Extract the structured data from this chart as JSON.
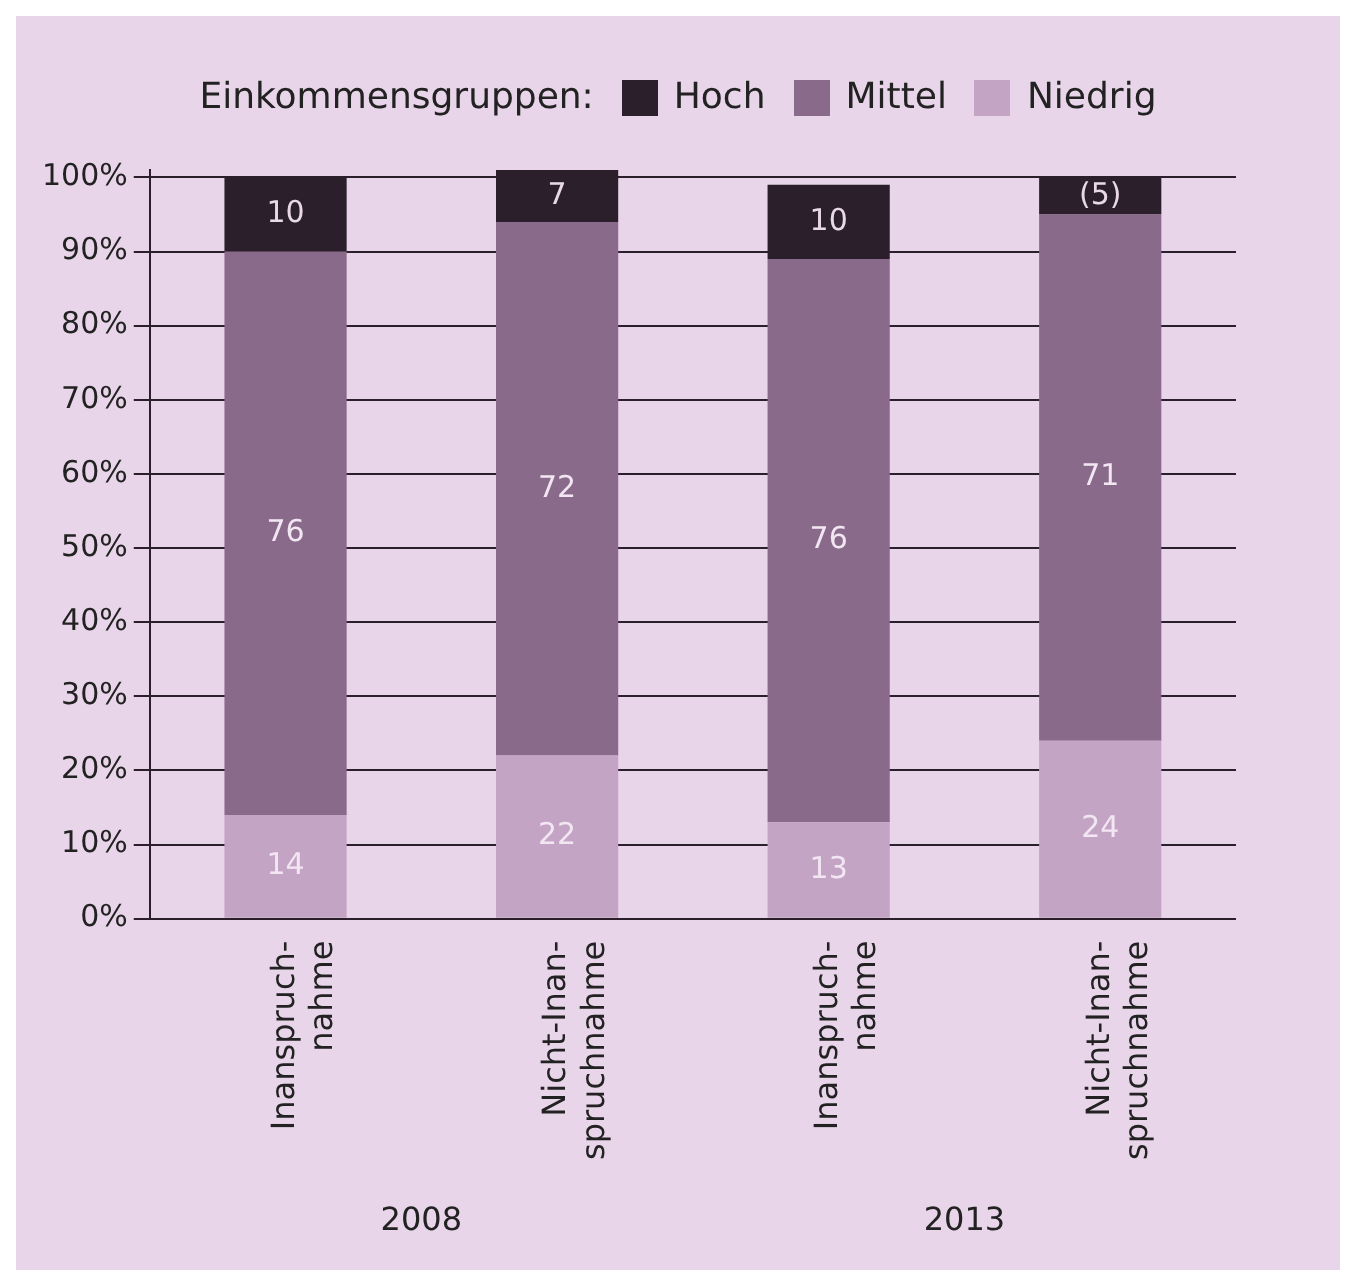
{
  "chart_data": {
    "type": "bar",
    "stacked": true,
    "legend_title": "Einkommensgruppen:",
    "legend": "top",
    "categories": [
      "Inanspruch-\nnahme",
      "Nicht-Inan-\nspruchnahme",
      "Inanspruch-\nnahme",
      "Nicht-Inan-\nspruchnahme"
    ],
    "series": [
      {
        "name": "Niedrig",
        "color": "#c4a4c4",
        "values": [
          14,
          22,
          13,
          24
        ],
        "value_labels": [
          "14",
          "22",
          "13",
          "24"
        ]
      },
      {
        "name": "Mittel",
        "color": "#8a6a8a",
        "values": [
          76,
          72,
          76,
          71
        ],
        "value_labels": [
          "76",
          "72",
          "76",
          "71"
        ]
      },
      {
        "name": "Hoch",
        "color": "#2b1f2b",
        "values": [
          10,
          7,
          10,
          5
        ],
        "value_labels": [
          "10",
          "7",
          "10",
          "(5)"
        ]
      }
    ],
    "ylim": [
      0,
      101
    ],
    "yticks": [
      {
        "value": 0,
        "label": "0%"
      },
      {
        "value": 10,
        "label": "10%"
      },
      {
        "value": 20,
        "label": "20%"
      },
      {
        "value": 30,
        "label": "30%"
      },
      {
        "value": 40,
        "label": "40%"
      },
      {
        "value": 50,
        "label": "50%"
      },
      {
        "value": 60,
        "label": "60%"
      },
      {
        "value": 70,
        "label": "70%"
      },
      {
        "value": 80,
        "label": "80%"
      },
      {
        "value": 90,
        "label": "90%"
      },
      {
        "value": 100,
        "label": "100%"
      }
    ],
    "grid": "y",
    "annotations": [
      "2008",
      "2013"
    ]
  }
}
